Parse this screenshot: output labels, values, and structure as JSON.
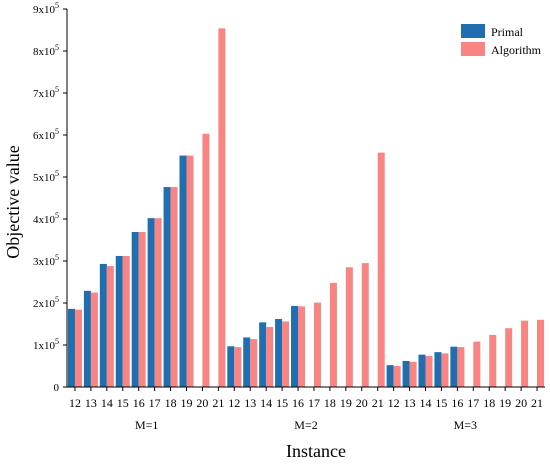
{
  "chart_data": {
    "type": "bar",
    "title": "",
    "xlabel": "Instance",
    "ylabel": "Objective value",
    "ylim": [
      0,
      900000
    ],
    "y_ticks": [
      {
        "value": 0,
        "label": "0"
      },
      {
        "value": 100000,
        "mant": "1x10",
        "exp": "5"
      },
      {
        "value": 200000,
        "mant": "2x10",
        "exp": "5"
      },
      {
        "value": 300000,
        "mant": "3x10",
        "exp": "5"
      },
      {
        "value": 400000,
        "mant": "4x10",
        "exp": "5"
      },
      {
        "value": 500000,
        "mant": "5x10",
        "exp": "5"
      },
      {
        "value": 600000,
        "mant": "6x10",
        "exp": "5"
      },
      {
        "value": 700000,
        "mant": "7x10",
        "exp": "5"
      },
      {
        "value": 800000,
        "mant": "8x10",
        "exp": "5"
      },
      {
        "value": 900000,
        "mant": "9x10",
        "exp": "5"
      }
    ],
    "groups": [
      "M=1",
      "M=2",
      "M=3"
    ],
    "categories": [
      "12",
      "13",
      "14",
      "15",
      "16",
      "17",
      "18",
      "19",
      "20",
      "21"
    ],
    "series": [
      {
        "name": "Primal",
        "color": "#1f6fb0",
        "values": [
          [
            186000,
            229000,
            293000,
            312000,
            369000,
            402000,
            476000,
            551000,
            null,
            null
          ],
          [
            97000,
            118000,
            154000,
            162000,
            193000,
            null,
            null,
            null,
            null,
            null
          ],
          [
            52000,
            62000,
            77000,
            83000,
            96000,
            null,
            null,
            null,
            null,
            null
          ]
        ]
      },
      {
        "name": "Algorithm",
        "color": "#f88584",
        "values": [
          [
            184000,
            225000,
            288000,
            312000,
            369000,
            402000,
            476000,
            551000,
            603000,
            854000
          ],
          [
            95000,
            114000,
            143000,
            156000,
            192000,
            201000,
            248000,
            285000,
            295000,
            558000
          ],
          [
            50000,
            60000,
            74000,
            80000,
            95000,
            108000,
            124000,
            140000,
            158000,
            160000
          ]
        ]
      }
    ],
    "grid": false,
    "legend_position": "top-right"
  }
}
